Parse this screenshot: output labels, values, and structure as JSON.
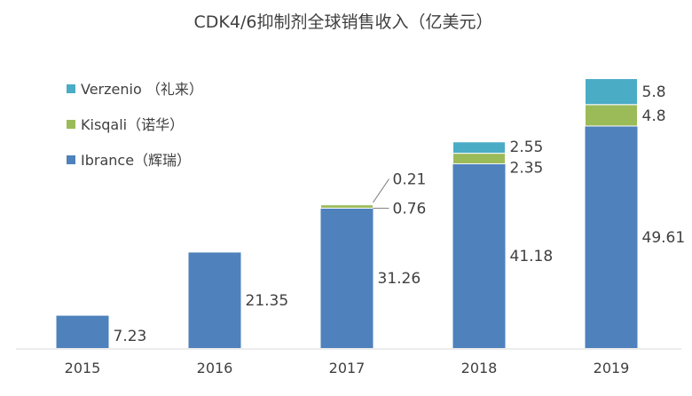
{
  "chart_data": {
    "type": "bar",
    "stacked": true,
    "title": "CDK4/6抑制剂全球销售收入（亿美元）",
    "categories": [
      "2015",
      "2016",
      "2017",
      "2018",
      "2019"
    ],
    "series": [
      {
        "name": "Ibrance（辉瑞）",
        "color": "#4f81bd",
        "values": [
          7.23,
          21.35,
          31.26,
          41.18,
          49.61
        ]
      },
      {
        "name": "Kisqali（诺华）",
        "color": "#9bbb59",
        "values": [
          null,
          null,
          0.76,
          2.35,
          4.8
        ]
      },
      {
        "name": "Verzenio （礼来）",
        "color": "#4bacc6",
        "values": [
          null,
          null,
          0.21,
          2.55,
          5.8
        ]
      }
    ],
    "value_labels": {
      "Ibrance（辉瑞）": [
        "7.23",
        "21.35",
        "31.26",
        "41.18",
        "49.61"
      ],
      "Kisqali（诺华）": [
        "",
        "",
        "0.76",
        "2.35",
        "4.8"
      ],
      "Verzenio （礼来）": [
        "",
        "",
        "0.21",
        "2.55",
        "5.8"
      ]
    },
    "legend_position": "top-left",
    "grid": false,
    "ylim": [
      0,
      60
    ]
  }
}
